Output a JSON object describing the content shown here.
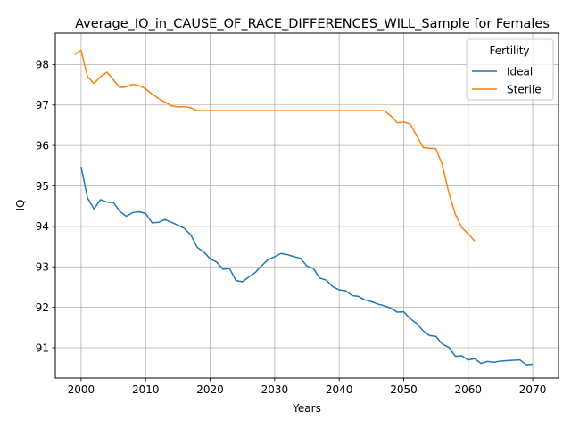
{
  "chart_data": {
    "type": "line",
    "title": "Average_IQ_in_CAUSE_OF_RACE_DIFFERENCES_WILL_Sample for Females",
    "xlabel": "Years",
    "ylabel": "IQ",
    "xlim": [
      1996,
      2074
    ],
    "ylim": [
      90.25,
      98.78
    ],
    "xticks": [
      2000,
      2010,
      2020,
      2030,
      2040,
      2050,
      2060,
      2070
    ],
    "yticks": [
      91,
      92,
      93,
      94,
      95,
      96,
      97,
      98
    ],
    "grid": true,
    "legend": {
      "title": "Fertility",
      "placement": "top-right"
    },
    "series": [
      {
        "name": "Ideal",
        "color": "#1f77b4",
        "x": [
          2000,
          2001,
          2002,
          2003,
          2004,
          2005,
          2006,
          2007,
          2008,
          2009,
          2010,
          2011,
          2012,
          2013,
          2014,
          2015,
          2016,
          2017,
          2018,
          2019,
          2020,
          2021,
          2022,
          2023,
          2024,
          2025,
          2026,
          2027,
          2028,
          2029,
          2030,
          2031,
          2032,
          2033,
          2034,
          2035,
          2036,
          2037,
          2038,
          2039,
          2040,
          2041,
          2042,
          2043,
          2044,
          2045,
          2046,
          2047,
          2048,
          2049,
          2050,
          2051,
          2052,
          2053,
          2054,
          2055,
          2056,
          2057,
          2058,
          2059,
          2060,
          2061,
          2062,
          2063,
          2064,
          2065,
          2066,
          2067,
          2068,
          2069,
          2070
        ],
        "y": [
          95.47,
          94.7,
          94.43,
          94.66,
          94.6,
          94.59,
          94.37,
          94.25,
          94.34,
          94.36,
          94.32,
          94.09,
          94.1,
          94.17,
          94.1,
          94.03,
          93.95,
          93.79,
          93.48,
          93.37,
          93.2,
          93.12,
          92.94,
          92.96,
          92.66,
          92.63,
          92.75,
          92.86,
          93.03,
          93.18,
          93.25,
          93.33,
          93.3,
          93.25,
          93.21,
          93.02,
          92.96,
          92.72,
          92.67,
          92.51,
          92.43,
          92.41,
          92.29,
          92.27,
          92.18,
          92.14,
          92.08,
          92.04,
          91.98,
          91.88,
          91.89,
          91.72,
          91.6,
          91.42,
          91.3,
          91.28,
          91.09,
          91.01,
          90.79,
          90.8,
          90.7,
          90.73,
          90.61,
          90.66,
          90.64,
          90.67,
          90.68,
          90.69,
          90.7,
          90.58,
          90.59
        ]
      },
      {
        "name": "Sterile",
        "color": "#ff7f0e",
        "x": [
          1999,
          2000,
          2001,
          2002,
          2003,
          2004,
          2005,
          2006,
          2007,
          2008,
          2009,
          2010,
          2011,
          2012,
          2013,
          2014,
          2015,
          2016,
          2017,
          2018,
          2019,
          2020,
          2021,
          2022,
          2023,
          2024,
          2025,
          2026,
          2027,
          2028,
          2029,
          2030,
          2031,
          2032,
          2033,
          2034,
          2035,
          2036,
          2037,
          2038,
          2039,
          2040,
          2041,
          2042,
          2043,
          2044,
          2045,
          2046,
          2047,
          2048,
          2049,
          2050,
          2051,
          2052,
          2053,
          2054,
          2055,
          2056,
          2057,
          2058,
          2059,
          2060,
          2061
        ],
        "y": [
          98.25,
          98.35,
          97.7,
          97.53,
          97.7,
          97.81,
          97.62,
          97.43,
          97.45,
          97.51,
          97.48,
          97.4,
          97.27,
          97.16,
          97.07,
          96.98,
          96.95,
          96.96,
          96.93,
          96.86,
          96.86,
          96.86,
          96.86,
          96.86,
          96.86,
          96.86,
          96.86,
          96.86,
          96.86,
          96.86,
          96.86,
          96.86,
          96.86,
          96.86,
          96.86,
          96.86,
          96.86,
          96.86,
          96.86,
          96.86,
          96.86,
          96.86,
          96.86,
          96.86,
          96.86,
          96.86,
          96.86,
          96.86,
          96.86,
          96.73,
          96.56,
          96.58,
          96.53,
          96.25,
          95.95,
          95.93,
          95.92,
          95.52,
          94.83,
          94.3,
          93.97,
          93.82,
          93.64
        ]
      }
    ]
  }
}
